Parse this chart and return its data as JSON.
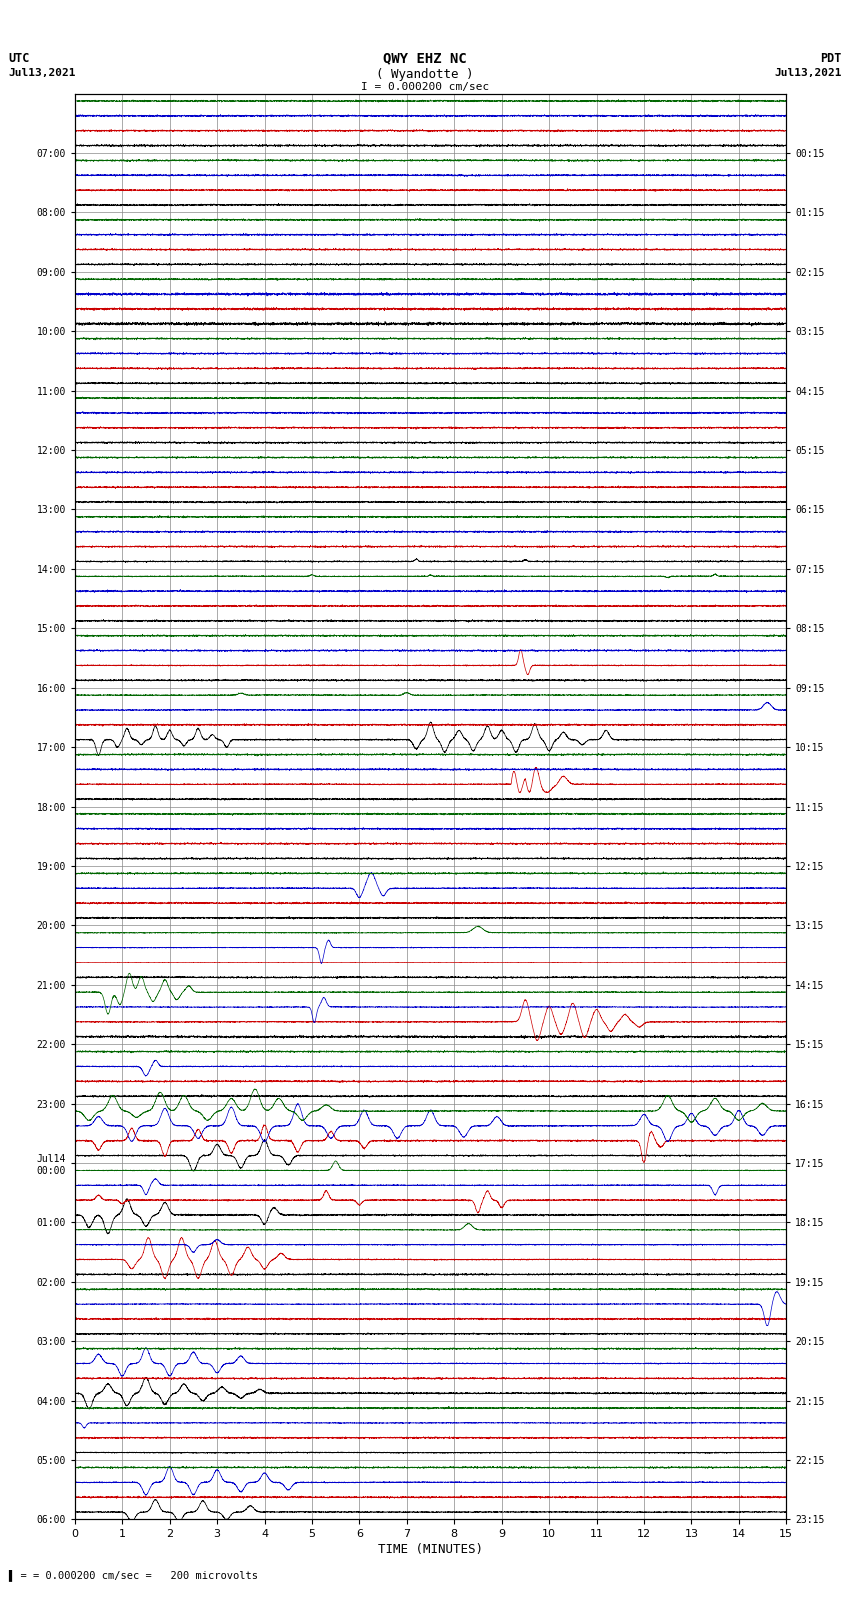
{
  "title_line1": "QWY EHZ NC",
  "title_line2": "( Wyandotte )",
  "scale_label": "I = 0.000200 cm/sec",
  "left_label_top": "UTC",
  "left_label_date": "Jul13,2021",
  "right_label_top": "PDT",
  "right_label_date": "Jul13,2021",
  "bottom_label": "TIME (MINUTES)",
  "footer_label": "= 0.000200 cm/sec =   200 microvolts",
  "utc_times": [
    "07:00",
    "08:00",
    "09:00",
    "10:00",
    "11:00",
    "12:00",
    "13:00",
    "14:00",
    "15:00",
    "16:00",
    "17:00",
    "18:00",
    "19:00",
    "20:00",
    "21:00",
    "22:00",
    "23:00",
    "Jul14\n00:00",
    "01:00",
    "02:00",
    "03:00",
    "04:00",
    "05:00",
    "06:00"
  ],
  "pdt_times": [
    "00:15",
    "01:15",
    "02:15",
    "03:15",
    "04:15",
    "05:15",
    "06:15",
    "07:15",
    "08:15",
    "09:15",
    "10:15",
    "11:15",
    "12:15",
    "13:15",
    "14:15",
    "15:15",
    "16:15",
    "17:15",
    "18:15",
    "19:15",
    "20:15",
    "21:15",
    "22:15",
    "23:15"
  ],
  "n_rows": 24,
  "x_min": 0,
  "x_max": 15,
  "x_ticks": [
    0,
    1,
    2,
    3,
    4,
    5,
    6,
    7,
    8,
    9,
    10,
    11,
    12,
    13,
    14,
    15
  ],
  "colors": {
    "black": "#000000",
    "red": "#cc0000",
    "blue": "#0000cc",
    "green": "#006600",
    "background": "#ffffff",
    "grid_major": "#888888",
    "grid_minor": "#cccccc"
  },
  "fig_width": 8.5,
  "fig_height": 16.13
}
